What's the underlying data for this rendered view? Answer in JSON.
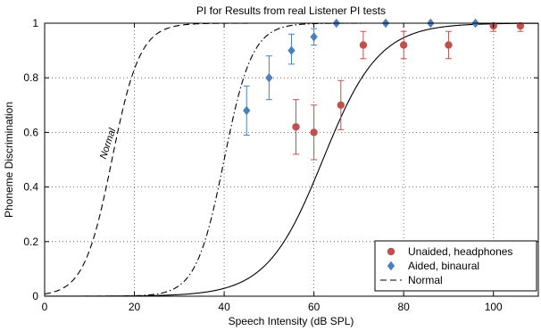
{
  "chart_data": {
    "type": "scatter",
    "title": "PI for Results from real Listener PI tests",
    "xlabel": "Speech Intensity (dB SPL)",
    "ylabel": "Phoneme Discrimination",
    "xlim": [
      0,
      110
    ],
    "ylim": [
      0,
      1
    ],
    "xticks": [
      0,
      20,
      40,
      60,
      80,
      100
    ],
    "yticks": [
      0,
      0.2,
      0.4,
      0.6,
      0.8,
      1
    ],
    "xtick_labels": [
      "0",
      "20",
      "40",
      "60",
      "80",
      "100"
    ],
    "ytick_labels": [
      "0",
      "0.2",
      "0.4",
      "0.6",
      "0.8",
      "1"
    ],
    "grid": true,
    "legend_position": "bottom-right",
    "annotation": "Normal",
    "series": [
      {
        "name": "Unaided, headphones",
        "marker": "circle",
        "color": "#c0504d",
        "points": [
          {
            "x": 56,
            "y": 0.62,
            "err_low": 0.52,
            "err_high": 0.72
          },
          {
            "x": 60,
            "y": 0.6,
            "err_low": 0.5,
            "err_high": 0.7
          },
          {
            "x": 66,
            "y": 0.7,
            "err_low": 0.61,
            "err_high": 0.79
          },
          {
            "x": 71,
            "y": 0.92,
            "err_low": 0.87,
            "err_high": 0.97
          },
          {
            "x": 80,
            "y": 0.92,
            "err_low": 0.87,
            "err_high": 0.97
          },
          {
            "x": 90,
            "y": 0.92,
            "err_low": 0.87,
            "err_high": 0.97
          },
          {
            "x": 100,
            "y": 0.99,
            "err_low": 0.97,
            "err_high": 1.0
          },
          {
            "x": 106,
            "y": 0.99,
            "err_low": 0.97,
            "err_high": 1.0
          }
        ]
      },
      {
        "name": "Aided, binaural",
        "marker": "diamond",
        "color": "#4a7fbf",
        "points": [
          {
            "x": 45,
            "y": 0.68,
            "err_low": 0.59,
            "err_high": 0.77
          },
          {
            "x": 50,
            "y": 0.8,
            "err_low": 0.72,
            "err_high": 0.88
          },
          {
            "x": 55,
            "y": 0.9,
            "err_low": 0.85,
            "err_high": 0.96
          },
          {
            "x": 60,
            "y": 0.95,
            "err_low": 0.92,
            "err_high": 0.98
          },
          {
            "x": 65,
            "y": 1.0
          },
          {
            "x": 76,
            "y": 1.0
          },
          {
            "x": 86,
            "y": 1.0
          },
          {
            "x": 96,
            "y": 1.0
          }
        ]
      },
      {
        "name": "Normal",
        "line_style": "dashed",
        "color": "#000000",
        "curve": "sigmoid",
        "center_x": 15,
        "slope": 0.32
      },
      {
        "line_style": "dash-dot",
        "color": "#000000",
        "curve": "sigmoid",
        "center_x": 40,
        "slope": 0.32
      },
      {
        "line_style": "solid",
        "color": "#000000",
        "curve": "sigmoid",
        "center_x": 62,
        "slope": 0.16
      }
    ]
  }
}
